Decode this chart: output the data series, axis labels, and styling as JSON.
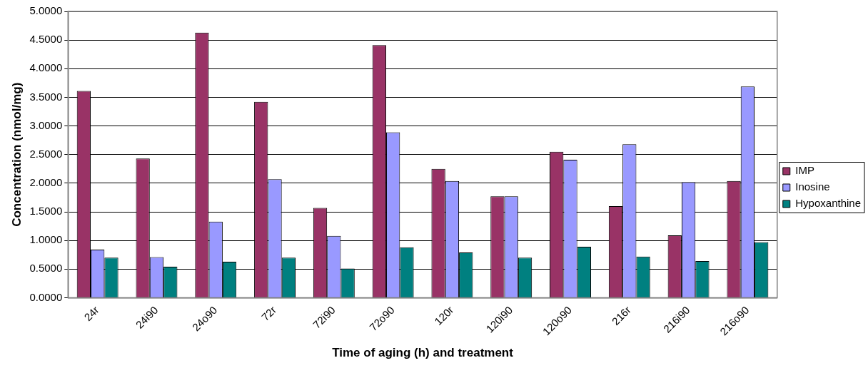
{
  "chart_data": {
    "type": "bar",
    "xlabel": "Time of aging (h) and treatment",
    "ylabel": "Concentration (nmol/mg)",
    "categories": [
      "24r",
      "24i90",
      "24o90",
      "72r",
      "72i90",
      "72o90",
      "120r",
      "120i90",
      "120o90",
      "216r",
      "216i90",
      "216o90"
    ],
    "series": [
      {
        "name": "IMP",
        "color": "#993366",
        "values": [
          3.61,
          2.43,
          4.63,
          3.42,
          1.57,
          4.41,
          2.25,
          1.77,
          2.55,
          1.6,
          1.09,
          2.04
        ]
      },
      {
        "name": "Inosine",
        "color": "#9999ff",
        "values": [
          0.84,
          0.71,
          1.33,
          2.07,
          1.08,
          2.89,
          2.04,
          1.77,
          2.41,
          2.68,
          2.02,
          3.69
        ]
      },
      {
        "name": "Hypoxanthine",
        "color": "#008080",
        "values": [
          0.7,
          0.54,
          0.63,
          0.7,
          0.51,
          0.88,
          0.79,
          0.7,
          0.89,
          0.72,
          0.64,
          0.97
        ]
      }
    ],
    "ylim": [
      0,
      5
    ],
    "yticks": [
      {
        "value": 0,
        "label": "0.0000"
      },
      {
        "value": 0.5,
        "label": "0.5000"
      },
      {
        "value": 1,
        "label": "1.0000"
      },
      {
        "value": 1.5,
        "label": "1.5000"
      },
      {
        "value": 2,
        "label": "2.0000"
      },
      {
        "value": 2.5,
        "label": "2.5000"
      },
      {
        "value": 3,
        "label": "3.0000"
      },
      {
        "value": 3.5,
        "label": "3.5000"
      },
      {
        "value": 4,
        "label": "4.0000"
      },
      {
        "value": 4.5,
        "label": "4.5000"
      },
      {
        "value": 5,
        "label": "5.0000"
      }
    ],
    "grid": "y",
    "legend": "right"
  }
}
